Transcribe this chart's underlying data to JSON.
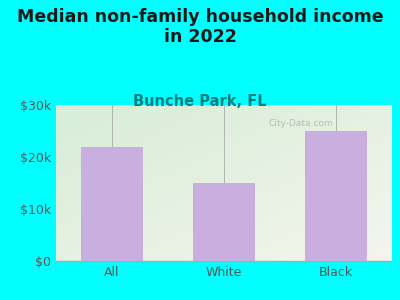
{
  "categories": [
    "All",
    "White",
    "Black"
  ],
  "values": [
    22000,
    15000,
    25000
  ],
  "bar_color": "#c9aee0",
  "title_line1": "Median non-family household income",
  "title_line2": "in 2022",
  "subtitle": "Bunche Park, FL",
  "title_fontsize": 12.5,
  "subtitle_fontsize": 10.5,
  "tick_label_fontsize": 9,
  "bg_color_outer": "#00ffff",
  "bg_color_chart_tl": "#d6edd6",
  "bg_color_chart_br": "#f5f5ee",
  "ylim": [
    0,
    30000
  ],
  "yticks": [
    0,
    10000,
    20000,
    30000
  ],
  "ytick_labels": [
    "$0",
    "$10k",
    "$20k",
    "$30k"
  ],
  "watermark": "City-Data.com",
  "title_color": "#1a1a1a",
  "subtitle_color": "#008080",
  "tick_color": "#555555",
  "spine_color": "#aaaaaa"
}
